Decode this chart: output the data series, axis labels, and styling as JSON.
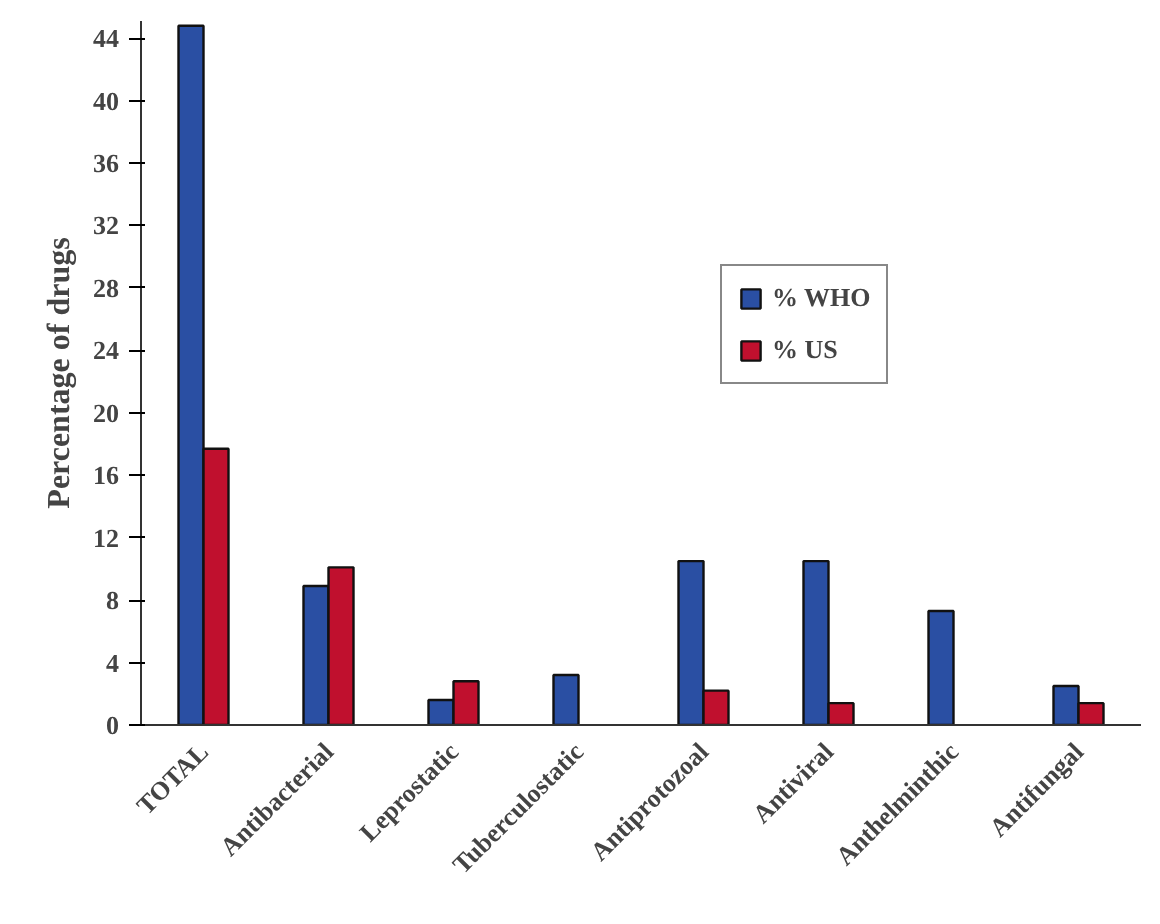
{
  "chart_data": {
    "type": "bar",
    "ylabel": "Percentage of drugs",
    "categories": [
      "TOTAL",
      "Antibacterial",
      "Leprostatic",
      "Tuberculostatic",
      "Antiprotozoal",
      "Antiviral",
      "Anthelminthic",
      "Antifungal"
    ],
    "series": [
      {
        "name": "% WHO",
        "color": "#2a4fa3",
        "values": [
          44.8,
          8.9,
          1.6,
          3.2,
          10.5,
          10.5,
          7.3,
          2.5
        ]
      },
      {
        "name": "% US",
        "color": "#c0102e",
        "values": [
          17.7,
          10.1,
          2.8,
          null,
          2.2,
          1.4,
          null,
          1.4
        ]
      }
    ],
    "ylim": [
      0,
      45.1
    ],
    "yticks": [
      0,
      4,
      8,
      12,
      16,
      20,
      24,
      28,
      32,
      36,
      40,
      44
    ],
    "grid": false,
    "legend": "top right"
  }
}
